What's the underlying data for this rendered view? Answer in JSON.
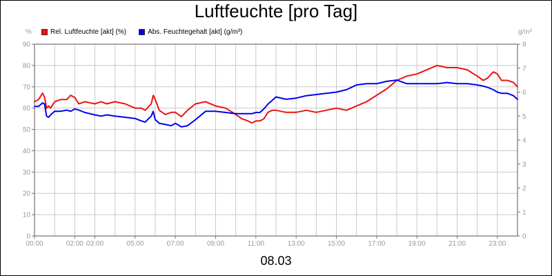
{
  "chart_data": {
    "type": "line",
    "title": "Luftfeuchte [pro Tag]",
    "date_label": "08.03",
    "left_axis": {
      "unit": "%",
      "ylim": [
        0,
        90
      ],
      "ticks": [
        0,
        10,
        20,
        30,
        40,
        50,
        60,
        70,
        80,
        90
      ]
    },
    "right_axis": {
      "unit": "g/m³",
      "ylim": [
        0,
        8
      ],
      "ticks": [
        0,
        1,
        2,
        3,
        4,
        5,
        6,
        7,
        8
      ]
    },
    "x_axis": {
      "range_hours": [
        0,
        24
      ],
      "tick_labels": [
        "00:00",
        "02:00",
        "03:00",
        "05:00",
        "07:00",
        "09:00",
        "11:00",
        "13:00",
        "15:00",
        "17:00",
        "19:00",
        "21:00",
        "23:00"
      ],
      "tick_hours": [
        0,
        2,
        3,
        5,
        7,
        9,
        11,
        13,
        15,
        17,
        19,
        21,
        23
      ]
    },
    "grid": true,
    "legend_placement": "top-left",
    "series": [
      {
        "name": "Rel. Luftfeuchte [akt] (%)",
        "axis": "left",
        "color": "#ee1111",
        "x": [
          0,
          0.2,
          0.4,
          0.5,
          0.6,
          0.7,
          0.8,
          1.0,
          1.3,
          1.6,
          1.8,
          2.0,
          2.2,
          2.5,
          3.0,
          3.3,
          3.6,
          4.0,
          4.5,
          5.0,
          5.3,
          5.5,
          5.8,
          5.9,
          6.0,
          6.2,
          6.5,
          6.8,
          7.0,
          7.3,
          7.6,
          8.0,
          8.5,
          9.0,
          9.5,
          10.0,
          10.3,
          10.6,
          10.8,
          11.0,
          11.2,
          11.4,
          11.6,
          11.8,
          12.0,
          12.5,
          13.0,
          13.5,
          14.0,
          14.5,
          15.0,
          15.5,
          16.0,
          16.5,
          17.0,
          17.5,
          18.0,
          18.5,
          19.0,
          19.5,
          20.0,
          20.5,
          21.0,
          21.5,
          22.0,
          22.3,
          22.5,
          22.8,
          23.0,
          23.2,
          23.5,
          23.8,
          24.0
        ],
        "values": [
          63,
          64,
          67,
          65,
          60,
          61,
          60,
          63,
          64,
          64,
          66,
          65,
          62,
          63,
          62,
          63,
          62,
          63,
          62,
          60,
          60,
          59,
          62,
          66,
          64,
          59,
          57,
          58,
          58,
          56,
          59,
          62,
          63,
          61,
          60,
          57,
          55,
          54,
          53,
          54,
          54,
          55,
          58,
          59,
          59,
          58,
          58,
          59,
          58,
          59,
          60,
          59,
          61,
          63,
          66,
          69,
          73,
          75,
          76,
          78,
          80,
          79,
          79,
          78,
          75,
          73,
          74,
          77,
          76,
          73,
          73,
          72,
          70
        ]
      },
      {
        "name": "Abs. Feuchtegehalt [akt] (g/m³)",
        "axis": "right",
        "color": "#0000ee",
        "x": [
          0,
          0.2,
          0.4,
          0.5,
          0.6,
          0.7,
          0.8,
          1.0,
          1.3,
          1.6,
          1.8,
          2.0,
          2.2,
          2.5,
          3.0,
          3.3,
          3.6,
          4.0,
          4.5,
          5.0,
          5.3,
          5.5,
          5.8,
          5.9,
          6.0,
          6.2,
          6.5,
          6.8,
          7.0,
          7.3,
          7.6,
          8.0,
          8.5,
          9.0,
          9.5,
          10.0,
          10.3,
          10.6,
          10.8,
          11.0,
          11.2,
          11.4,
          11.6,
          11.8,
          12.0,
          12.5,
          13.0,
          13.5,
          14.0,
          14.5,
          15.0,
          15.5,
          16.0,
          16.5,
          17.0,
          17.5,
          18.0,
          18.5,
          19.0,
          19.5,
          20.0,
          20.5,
          21.0,
          21.5,
          22.0,
          22.3,
          22.5,
          22.8,
          23.0,
          23.2,
          23.5,
          23.8,
          24.0
        ],
        "values": [
          5.4,
          5.4,
          5.55,
          5.5,
          5.0,
          4.95,
          5.05,
          5.2,
          5.2,
          5.25,
          5.2,
          5.3,
          5.25,
          5.15,
          5.05,
          5.0,
          5.05,
          5.0,
          4.95,
          4.9,
          4.8,
          4.75,
          5.0,
          5.2,
          4.85,
          4.7,
          4.65,
          4.6,
          4.7,
          4.55,
          4.6,
          4.85,
          5.2,
          5.2,
          5.15,
          5.1,
          5.1,
          5.1,
          5.1,
          5.15,
          5.15,
          5.3,
          5.5,
          5.65,
          5.8,
          5.7,
          5.75,
          5.85,
          5.9,
          5.95,
          6.0,
          6.1,
          6.3,
          6.35,
          6.35,
          6.45,
          6.5,
          6.35,
          6.35,
          6.35,
          6.35,
          6.4,
          6.35,
          6.35,
          6.3,
          6.25,
          6.2,
          6.1,
          6.0,
          5.95,
          5.95,
          5.85,
          5.7
        ]
      }
    ]
  }
}
